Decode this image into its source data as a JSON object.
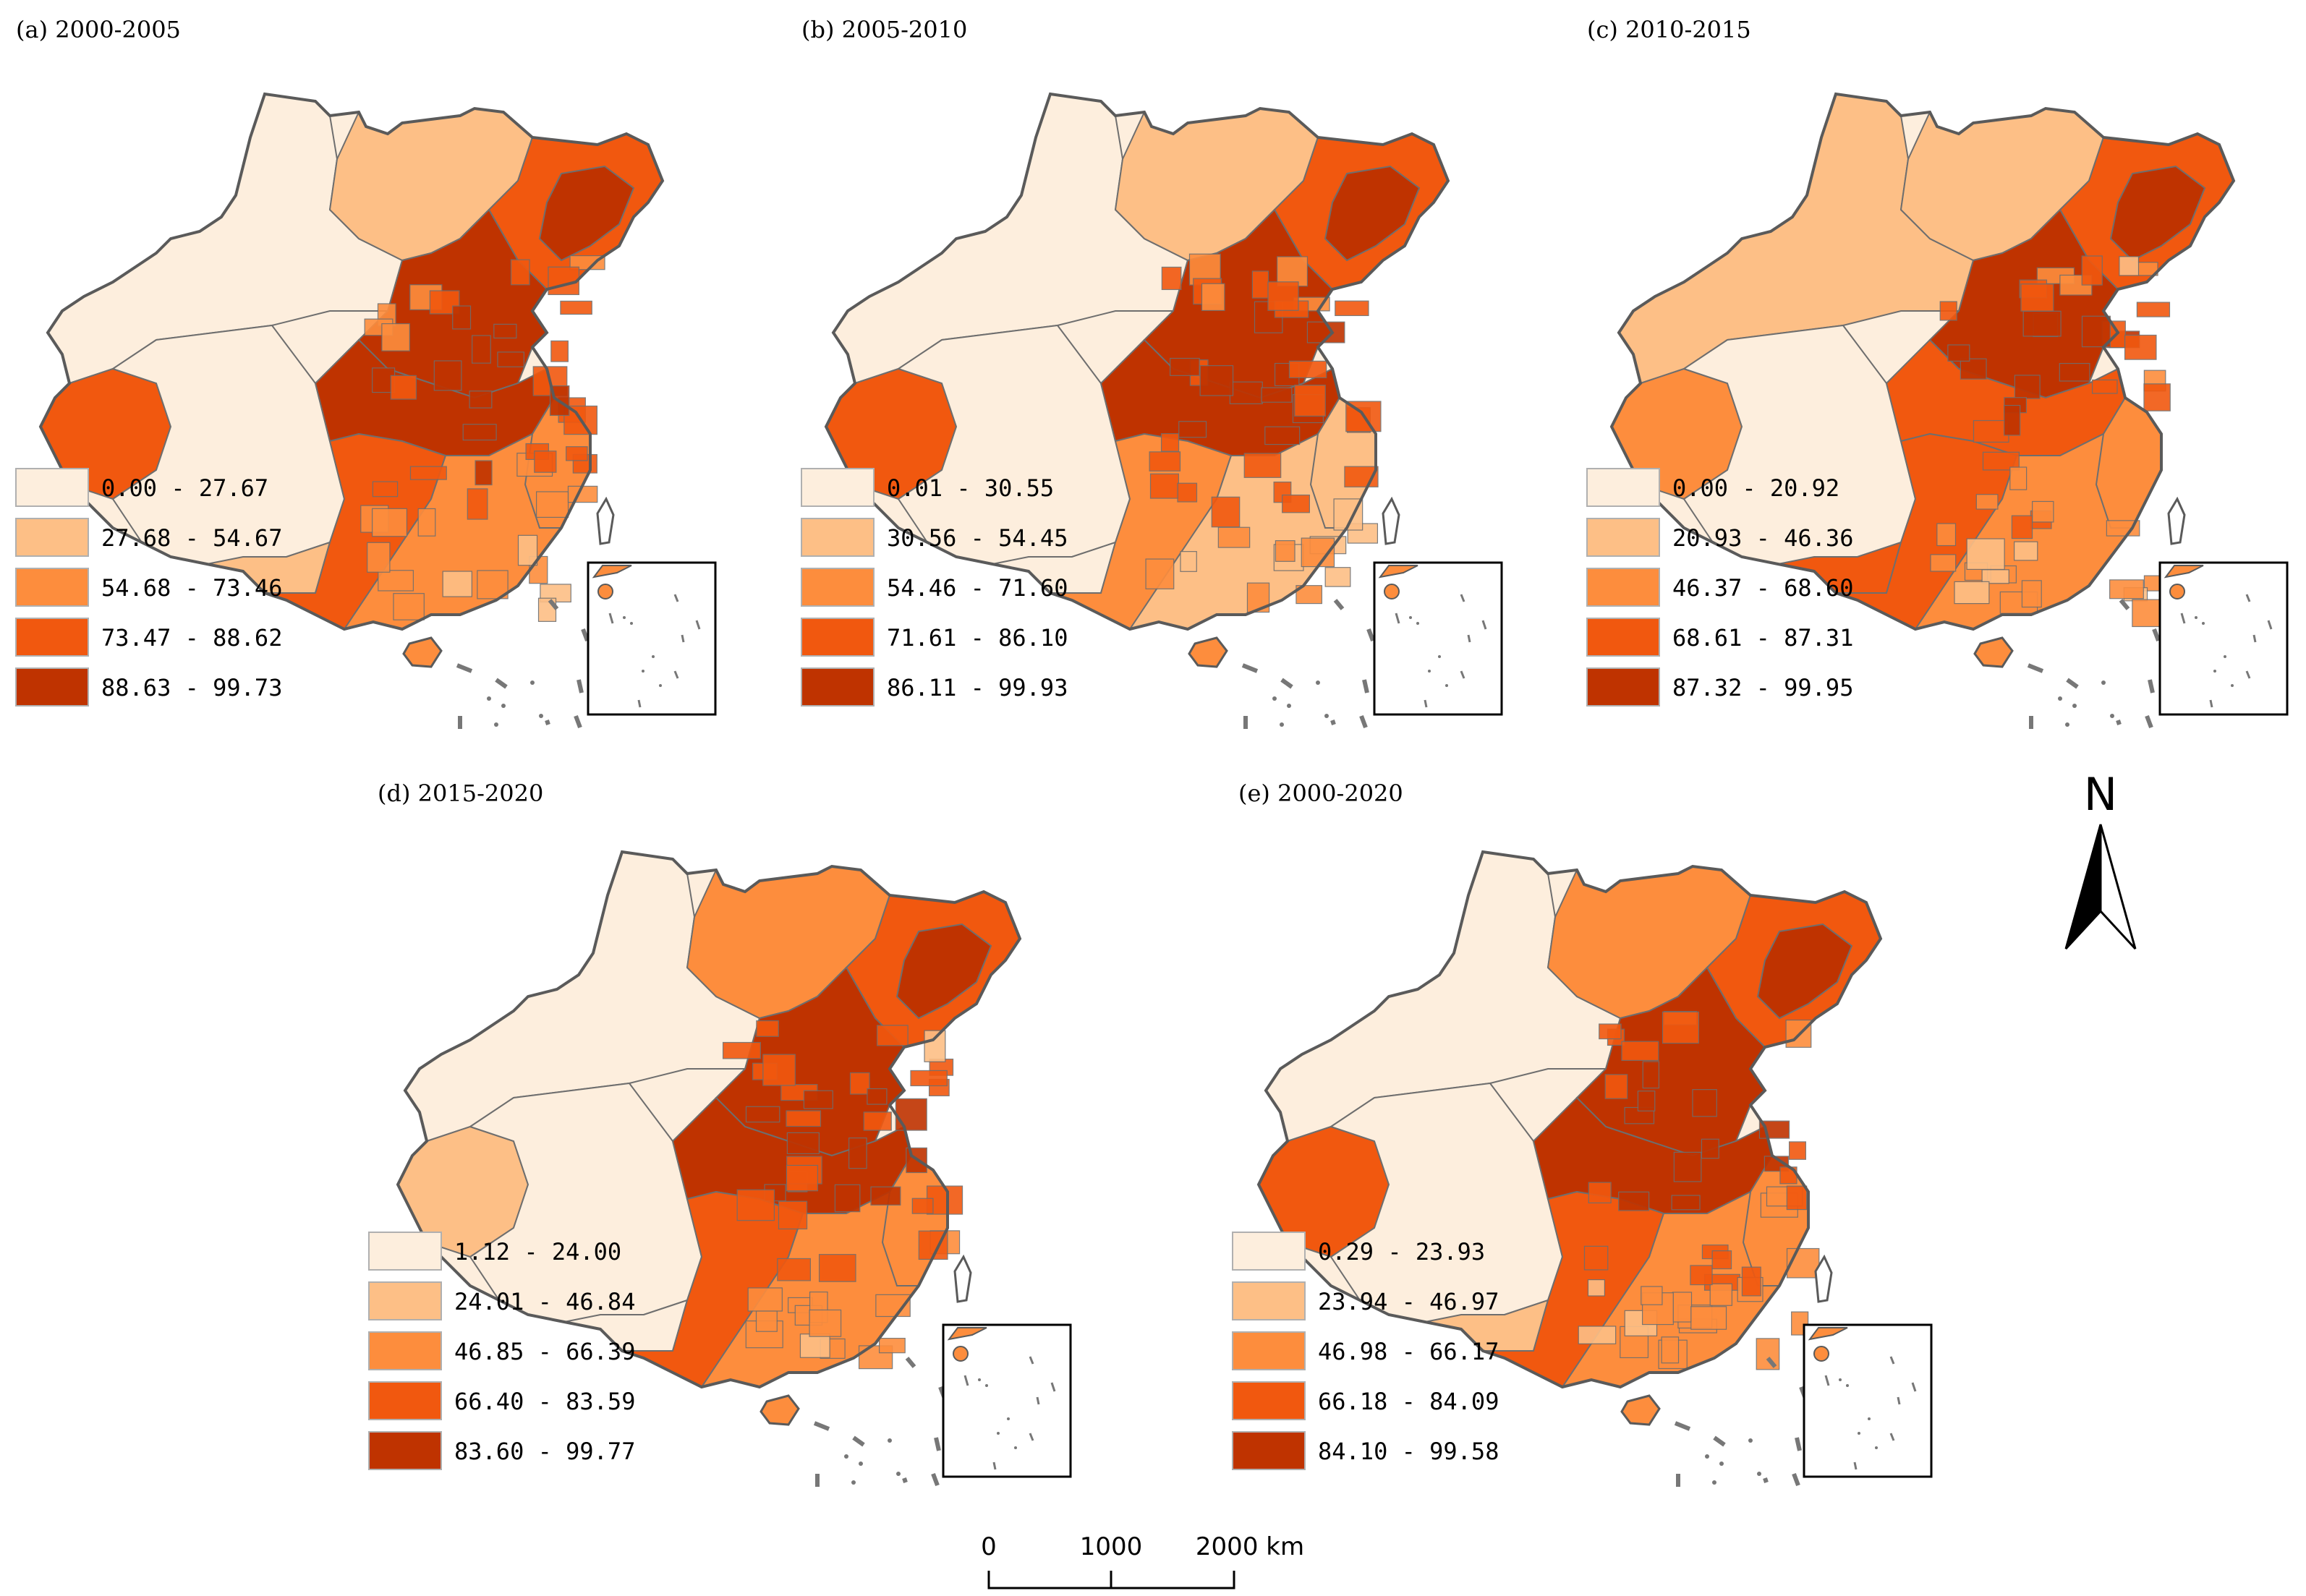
{
  "colors": {
    "class1": "#FDEEDD",
    "class2": "#FDBF86",
    "class3": "#FD8D3D",
    "class4": "#F1580F",
    "class5": "#BF3300",
    "border": "#6e6e6e",
    "outline": "#5a5a5a"
  },
  "panels": [
    {
      "id": "a",
      "title": "(a)  2000-2005",
      "legend": [
        "0.00 - 27.67",
        "27.68 - 54.67",
        "54.68 - 73.46",
        "73.47 - 88.62",
        "88.63 - 99.73"
      ],
      "regions": {
        "northwest": 1,
        "xinjiang_west": 4,
        "tibet": 1,
        "tibet_south": 2,
        "inner_mongolia": 2,
        "northeast": 4,
        "heilongjiang_core": 5,
        "north_china": 5,
        "central": 5,
        "southwest": 4,
        "south": 3,
        "southeast_coast": 3,
        "hainan": 3
      }
    },
    {
      "id": "b",
      "title": "(b)  2005-2010",
      "legend": [
        "0.01 - 30.55",
        "30.56 - 54.45",
        "54.46 - 71.60",
        "71.61 - 86.10",
        "86.11 - 99.93"
      ],
      "regions": {
        "northwest": 1,
        "xinjiang_west": 4,
        "tibet": 1,
        "tibet_south": 1,
        "inner_mongolia": 2,
        "northeast": 4,
        "heilongjiang_core": 5,
        "north_china": 5,
        "central": 5,
        "southwest": 3,
        "south": 2,
        "southeast_coast": 2,
        "hainan": 3
      }
    },
    {
      "id": "c",
      "title": "(c)  2010-2015",
      "legend": [
        "0.00 - 20.92",
        "20.93 - 46.36",
        "46.37 - 68.60",
        "68.61 - 87.31",
        "87.32 - 99.95"
      ],
      "regions": {
        "northwest": 2,
        "xinjiang_west": 3,
        "tibet": 1,
        "tibet_south": 4,
        "inner_mongolia": 2,
        "northeast": 4,
        "heilongjiang_core": 5,
        "north_china": 5,
        "central": 4,
        "southwest": 4,
        "south": 3,
        "southeast_coast": 3,
        "hainan": 3
      }
    },
    {
      "id": "d",
      "title": "(d)  2015-2020",
      "legend": [
        "1.12 - 24.00",
        "24.01 - 46.84",
        "46.85 - 66.39",
        "66.40 - 83.59",
        "83.60 - 99.77"
      ],
      "regions": {
        "northwest": 1,
        "xinjiang_west": 2,
        "tibet": 1,
        "tibet_south": 1,
        "inner_mongolia": 3,
        "northeast": 4,
        "heilongjiang_core": 5,
        "north_china": 5,
        "central": 5,
        "southwest": 4,
        "south": 3,
        "southeast_coast": 3,
        "hainan": 3
      }
    },
    {
      "id": "e",
      "title": "(e)  2000-2020",
      "legend": [
        "0.29 - 23.93",
        "23.94 - 46.97",
        "46.98 - 66.17",
        "66.18 - 84.09",
        "84.10 - 99.58"
      ],
      "regions": {
        "northwest": 1,
        "xinjiang_west": 4,
        "tibet": 1,
        "tibet_south": 2,
        "inner_mongolia": 3,
        "northeast": 4,
        "heilongjiang_core": 5,
        "north_china": 5,
        "central": 5,
        "southwest": 4,
        "south": 3,
        "southeast_coast": 3,
        "hainan": 3
      }
    }
  ],
  "north_arrow": {
    "label": "N"
  },
  "scale_bar": {
    "labels": [
      "0",
      "1000",
      "2000 km"
    ]
  }
}
